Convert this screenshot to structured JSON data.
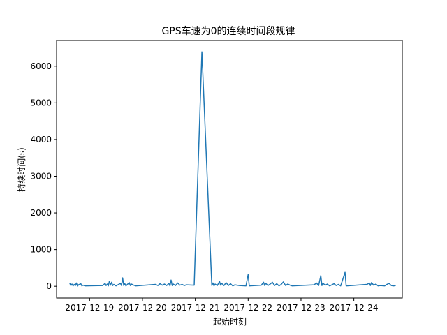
{
  "chart_data": {
    "type": "line",
    "title": "GPS车速为0的连续时间段规律",
    "xlabel": "起始时刻",
    "ylabel": "持续时间(s)",
    "x_ticks": [
      "2017-12-19",
      "2017-12-20",
      "2017-12-21",
      "2017-12-22",
      "2017-12-23",
      "2017-12-24"
    ],
    "y_ticks": [
      0,
      1000,
      2000,
      3000,
      4000,
      5000,
      6000
    ],
    "xlim": [
      "2017-12-18T09:00",
      "2017-12-24T22:00"
    ],
    "ylim": [
      -320,
      6700
    ],
    "grid": false,
    "series": [
      {
        "name": "",
        "color": "#1f77b4",
        "points": [
          [
            "2017-12-18T15:00",
            80
          ],
          [
            "2017-12-18T15:30",
            20
          ],
          [
            "2017-12-18T16:00",
            60
          ],
          [
            "2017-12-18T16:30",
            10
          ],
          [
            "2017-12-18T17:00",
            50
          ],
          [
            "2017-12-18T17:30",
            15
          ],
          [
            "2017-12-18T18:00",
            90
          ],
          [
            "2017-12-18T18:30",
            5
          ],
          [
            "2017-12-18T19:00",
            40
          ],
          [
            "2017-12-18T20:00",
            70
          ],
          [
            "2017-12-18T20:30",
            10
          ],
          [
            "2017-12-18T21:00",
            30
          ],
          [
            "2017-12-18T22:00",
            10
          ],
          [
            "2017-12-19T06:00",
            20
          ],
          [
            "2017-12-19T07:00",
            80
          ],
          [
            "2017-12-19T07:30",
            20
          ],
          [
            "2017-12-19T08:00",
            60
          ],
          [
            "2017-12-19T08:30",
            10
          ],
          [
            "2017-12-19T09:00",
            140
          ],
          [
            "2017-12-19T09:30",
            30
          ],
          [
            "2017-12-19T10:00",
            110
          ],
          [
            "2017-12-19T10:30",
            20
          ],
          [
            "2017-12-19T11:00",
            50
          ],
          [
            "2017-12-19T12:00",
            10
          ],
          [
            "2017-12-19T14:00",
            80
          ],
          [
            "2017-12-19T14:30",
            20
          ],
          [
            "2017-12-19T15:00",
            230
          ],
          [
            "2017-12-19T15:30",
            20
          ],
          [
            "2017-12-19T16:00",
            70
          ],
          [
            "2017-12-19T16:30",
            10
          ],
          [
            "2017-12-19T17:00",
            40
          ],
          [
            "2017-12-19T18:00",
            100
          ],
          [
            "2017-12-19T18:30",
            20
          ],
          [
            "2017-12-19T19:00",
            60
          ],
          [
            "2017-12-19T20:00",
            30
          ],
          [
            "2017-12-19T21:00",
            10
          ],
          [
            "2017-12-20T06:00",
            50
          ],
          [
            "2017-12-20T07:00",
            20
          ],
          [
            "2017-12-20T08:00",
            70
          ],
          [
            "2017-12-20T09:00",
            30
          ],
          [
            "2017-12-20T10:00",
            60
          ],
          [
            "2017-12-20T11:00",
            20
          ],
          [
            "2017-12-20T12:00",
            80
          ],
          [
            "2017-12-20T12:30",
            10
          ],
          [
            "2017-12-20T13:00",
            170
          ],
          [
            "2017-12-20T13:30",
            20
          ],
          [
            "2017-12-20T14:00",
            60
          ],
          [
            "2017-12-20T15:00",
            20
          ],
          [
            "2017-12-20T16:00",
            90
          ],
          [
            "2017-12-20T17:00",
            30
          ],
          [
            "2017-12-20T18:00",
            50
          ],
          [
            "2017-12-20T19:00",
            20
          ],
          [
            "2017-12-20T20:00",
            40
          ],
          [
            "2017-12-20T23:30",
            30
          ],
          [
            "2017-12-21T03:00",
            6390
          ],
          [
            "2017-12-21T07:30",
            20
          ],
          [
            "2017-12-21T08:00",
            90
          ],
          [
            "2017-12-21T08:30",
            10
          ],
          [
            "2017-12-21T09:00",
            60
          ],
          [
            "2017-12-21T10:00",
            20
          ],
          [
            "2017-12-21T11:00",
            130
          ],
          [
            "2017-12-21T11:30",
            30
          ],
          [
            "2017-12-21T12:00",
            80
          ],
          [
            "2017-12-21T13:00",
            20
          ],
          [
            "2017-12-21T14:00",
            100
          ],
          [
            "2017-12-21T15:00",
            20
          ],
          [
            "2017-12-21T16:00",
            70
          ],
          [
            "2017-12-21T17:00",
            10
          ],
          [
            "2017-12-21T18:00",
            40
          ],
          [
            "2017-12-21T20:00",
            20
          ],
          [
            "2017-12-21T23:00",
            10
          ],
          [
            "2017-12-22T00:00",
            320
          ],
          [
            "2017-12-22T00:30",
            10
          ],
          [
            "2017-12-22T06:00",
            30
          ],
          [
            "2017-12-22T07:00",
            110
          ],
          [
            "2017-12-22T07:30",
            20
          ],
          [
            "2017-12-22T08:00",
            80
          ],
          [
            "2017-12-22T09:00",
            20
          ],
          [
            "2017-12-22T10:00",
            60
          ],
          [
            "2017-12-22T11:00",
            110
          ],
          [
            "2017-12-22T12:00",
            20
          ],
          [
            "2017-12-22T13:00",
            70
          ],
          [
            "2017-12-22T14:00",
            10
          ],
          [
            "2017-12-22T15:00",
            50
          ],
          [
            "2017-12-22T16:00",
            120
          ],
          [
            "2017-12-22T17:00",
            20
          ],
          [
            "2017-12-22T18:00",
            60
          ],
          [
            "2017-12-22T19:00",
            30
          ],
          [
            "2017-12-22T20:00",
            10
          ],
          [
            "2017-12-23T06:00",
            40
          ],
          [
            "2017-12-23T07:00",
            90
          ],
          [
            "2017-12-23T08:00",
            20
          ],
          [
            "2017-12-23T09:00",
            290
          ],
          [
            "2017-12-23T09:30",
            20
          ],
          [
            "2017-12-23T10:00",
            80
          ],
          [
            "2017-12-23T11:00",
            30
          ],
          [
            "2017-12-23T12:00",
            60
          ],
          [
            "2017-12-23T13:00",
            10
          ],
          [
            "2017-12-23T15:00",
            70
          ],
          [
            "2017-12-23T16:00",
            20
          ],
          [
            "2017-12-23T17:00",
            50
          ],
          [
            "2017-12-23T18:00",
            10
          ],
          [
            "2017-12-23T20:00",
            380
          ],
          [
            "2017-12-23T20:30",
            10
          ],
          [
            "2017-12-24T06:00",
            50
          ],
          [
            "2017-12-24T07:00",
            90
          ],
          [
            "2017-12-24T07:30",
            20
          ],
          [
            "2017-12-24T08:00",
            100
          ],
          [
            "2017-12-24T09:00",
            30
          ],
          [
            "2017-12-24T10:00",
            60
          ],
          [
            "2017-12-24T11:00",
            10
          ],
          [
            "2017-12-24T12:00",
            20
          ],
          [
            "2017-12-24T14:00",
            10
          ],
          [
            "2017-12-24T15:00",
            50
          ],
          [
            "2017-12-24T16:00",
            80
          ],
          [
            "2017-12-24T17:00",
            20
          ],
          [
            "2017-12-24T18:00",
            10
          ],
          [
            "2017-12-24T19:00",
            20
          ]
        ]
      }
    ]
  }
}
